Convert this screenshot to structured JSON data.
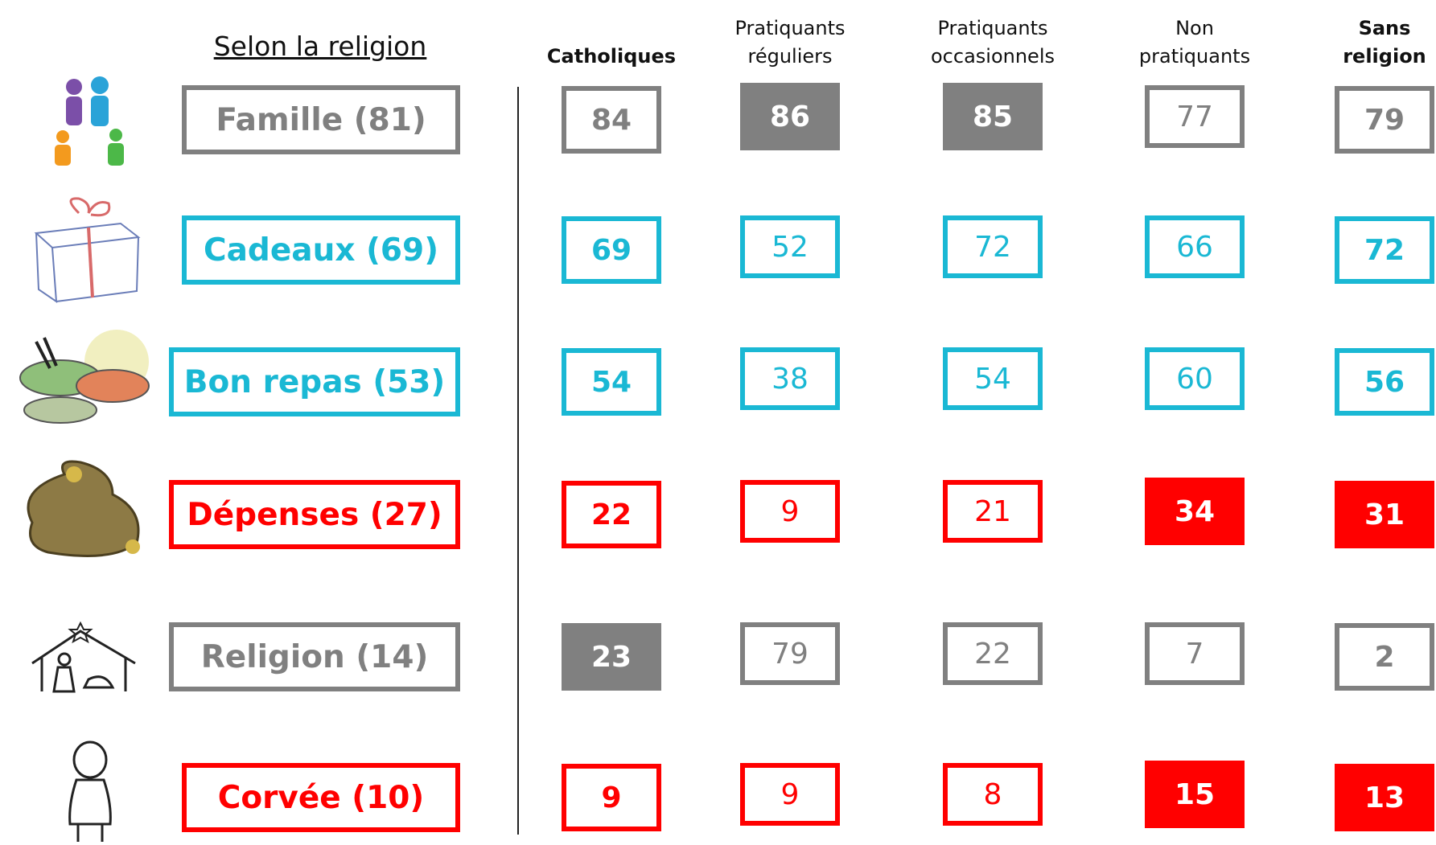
{
  "title": "Selon la religion",
  "columns": [
    {
      "label": "Catholiques",
      "bold": true
    },
    {
      "label": "Pratiquants réguliers",
      "bold": false
    },
    {
      "label": "Pratiquants occasionnels",
      "bold": false
    },
    {
      "label": "Non pratiquants",
      "bold": false
    },
    {
      "label": "Sans religion",
      "bold": true
    }
  ],
  "rows": [
    {
      "label": "Famille (81)",
      "color": "#808080",
      "values": [
        84,
        86,
        85,
        77,
        79
      ],
      "filled": [
        false,
        true,
        true,
        false,
        false
      ]
    },
    {
      "label": "Cadeaux (69)",
      "color": "#1ab8d4",
      "values": [
        69,
        52,
        72,
        66,
        72
      ],
      "filled": [
        false,
        false,
        false,
        false,
        false
      ]
    },
    {
      "label": "Bon repas (53)",
      "color": "#1ab8d4",
      "values": [
        54,
        38,
        54,
        60,
        56
      ],
      "filled": [
        false,
        false,
        false,
        false,
        false
      ]
    },
    {
      "label": "Dépenses (27)",
      "color": "#ff0000",
      "values": [
        22,
        9,
        21,
        34,
        31
      ],
      "filled": [
        false,
        false,
        false,
        true,
        true
      ]
    },
    {
      "label": "Religion (14)",
      "color": "#808080",
      "values": [
        23,
        79,
        22,
        7,
        2
      ],
      "filled": [
        true,
        false,
        false,
        false,
        false
      ]
    },
    {
      "label": "Corvée (10)",
      "color": "#ff0000",
      "values": [
        9,
        9,
        8,
        15,
        13
      ],
      "filled": [
        false,
        false,
        false,
        true,
        true
      ]
    }
  ]
}
